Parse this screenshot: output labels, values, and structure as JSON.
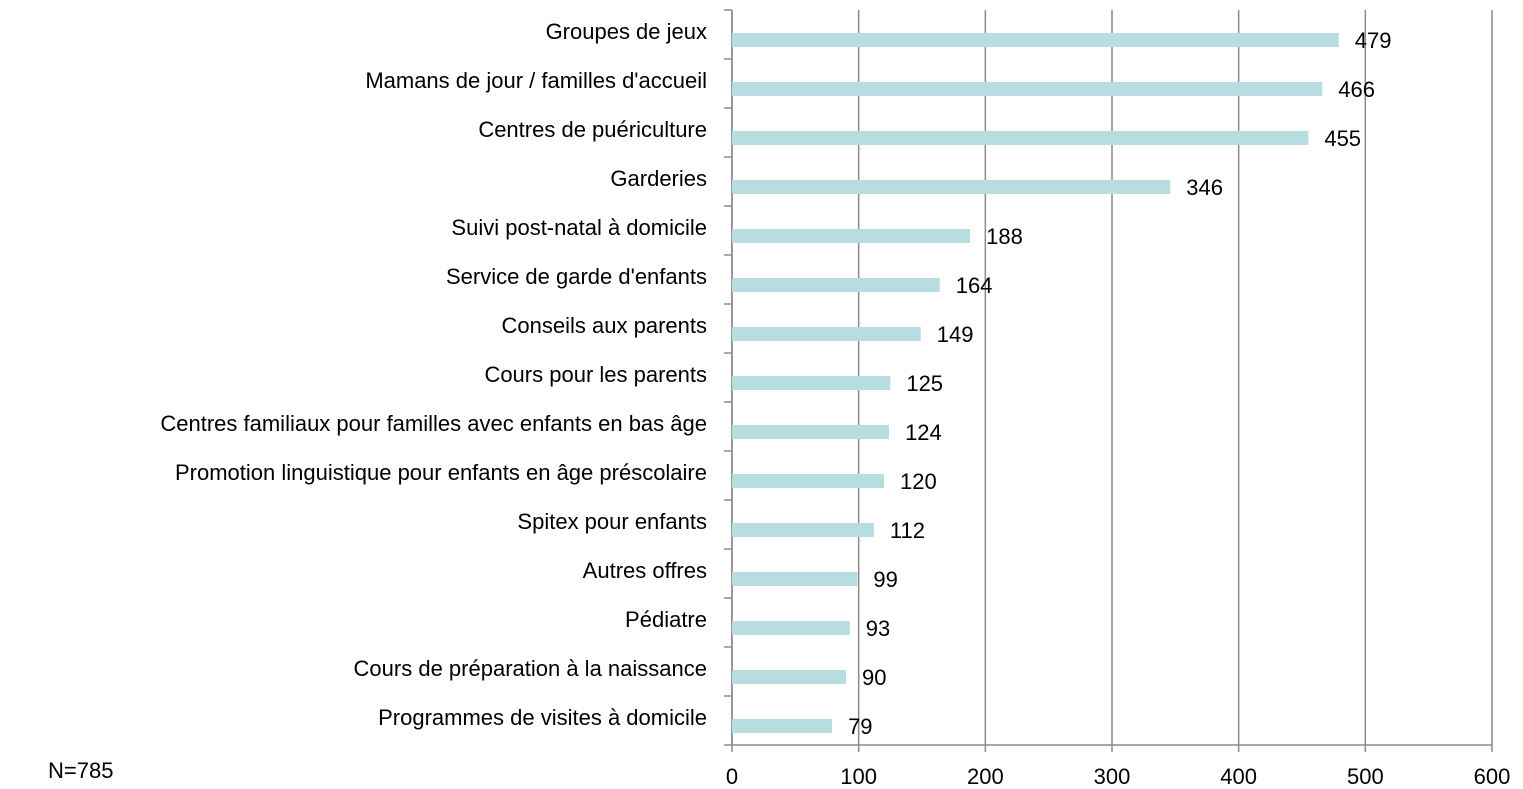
{
  "chart_data": {
    "type": "bar",
    "orientation": "horizontal",
    "categories": [
      "Groupes de jeux",
      "Mamans de jour / familles d'accueil",
      "Centres de puériculture",
      "Garderies",
      "Suivi post-natal à domicile",
      "Service de garde d'enfants",
      "Conseils aux parents",
      "Cours pour les parents",
      "Centres familiaux pour familles avec enfants en bas âge",
      "Promotion linguistique pour enfants en âge préscolaire",
      "Spitex pour enfants",
      "Autres offres",
      "Pédiatre",
      "Cours de préparation à la naissance",
      "Programmes de visites à domicile"
    ],
    "values": [
      479,
      466,
      455,
      346,
      188,
      164,
      149,
      125,
      124,
      120,
      112,
      99,
      93,
      90,
      79
    ],
    "color": "#b7dde1",
    "xlim": [
      0,
      600
    ],
    "xticks": [
      0,
      100,
      200,
      300,
      400,
      500,
      600
    ],
    "grid": true,
    "annotation": "N=785"
  }
}
